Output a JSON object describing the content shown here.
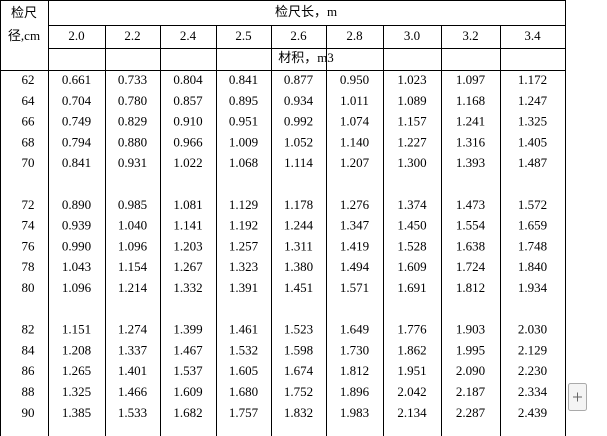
{
  "header": {
    "diameter_label": [
      "检尺",
      "径,cm"
    ],
    "length_label": "检尺长，m",
    "lengths": [
      "2.0",
      "2.2",
      "2.4",
      "2.5",
      "2.6",
      "2.8",
      "3.0",
      "3.2",
      "3.4"
    ],
    "volume_label": "材积，m3"
  },
  "groups": [
    {
      "rows": [
        {
          "diameter": "62",
          "volumes": [
            "0.661",
            "0.733",
            "0.804",
            "0.841",
            "0.877",
            "0.950",
            "1.023",
            "1.097",
            "1.172"
          ]
        },
        {
          "diameter": "64",
          "volumes": [
            "0.704",
            "0.780",
            "0.857",
            "0.895",
            "0.934",
            "1.011",
            "1.089",
            "1.168",
            "1.247"
          ]
        },
        {
          "diameter": "66",
          "volumes": [
            "0.749",
            "0.829",
            "0.910",
            "0.951",
            "0.992",
            "1.074",
            "1.157",
            "1.241",
            "1.325"
          ]
        },
        {
          "diameter": "68",
          "volumes": [
            "0.794",
            "0.880",
            "0.966",
            "1.009",
            "1.052",
            "1.140",
            "1.227",
            "1.316",
            "1.405"
          ]
        },
        {
          "diameter": "70",
          "volumes": [
            "0.841",
            "0.931",
            "1.022",
            "1.068",
            "1.114",
            "1.207",
            "1.300",
            "1.393",
            "1.487"
          ]
        }
      ]
    },
    {
      "rows": [
        {
          "diameter": "72",
          "volumes": [
            "0.890",
            "0.985",
            "1.081",
            "1.129",
            "1.178",
            "1.276",
            "1.374",
            "1.473",
            "1.572"
          ]
        },
        {
          "diameter": "74",
          "volumes": [
            "0.939",
            "1.040",
            "1.141",
            "1.192",
            "1.244",
            "1.347",
            "1.450",
            "1.554",
            "1.659"
          ]
        },
        {
          "diameter": "76",
          "volumes": [
            "0.990",
            "1.096",
            "1.203",
            "1.257",
            "1.311",
            "1.419",
            "1.528",
            "1.638",
            "1.748"
          ]
        },
        {
          "diameter": "78",
          "volumes": [
            "1.043",
            "1.154",
            "1.267",
            "1.323",
            "1.380",
            "1.494",
            "1.609",
            "1.724",
            "1.840"
          ]
        },
        {
          "diameter": "80",
          "volumes": [
            "1.096",
            "1.214",
            "1.332",
            "1.391",
            "1.451",
            "1.571",
            "1.691",
            "1.812",
            "1.934"
          ]
        }
      ]
    },
    {
      "rows": [
        {
          "diameter": "82",
          "volumes": [
            "1.151",
            "1.274",
            "1.399",
            "1.461",
            "1.523",
            "1.649",
            "1.776",
            "1.903",
            "2.030"
          ]
        },
        {
          "diameter": "84",
          "volumes": [
            "1.208",
            "1.337",
            "1.467",
            "1.532",
            "1.598",
            "1.730",
            "1.862",
            "1.995",
            "2.129"
          ]
        },
        {
          "diameter": "86",
          "volumes": [
            "1.265",
            "1.401",
            "1.537",
            "1.605",
            "1.674",
            "1.812",
            "1.951",
            "2.090",
            "2.230"
          ]
        },
        {
          "diameter": "88",
          "volumes": [
            "1.325",
            "1.466",
            "1.609",
            "1.680",
            "1.752",
            "1.896",
            "2.042",
            "2.187",
            "2.334"
          ]
        },
        {
          "diameter": "90",
          "volumes": [
            "1.385",
            "1.533",
            "1.682",
            "1.757",
            "1.832",
            "1.983",
            "2.134",
            "2.287",
            "2.439"
          ]
        }
      ]
    }
  ]
}
